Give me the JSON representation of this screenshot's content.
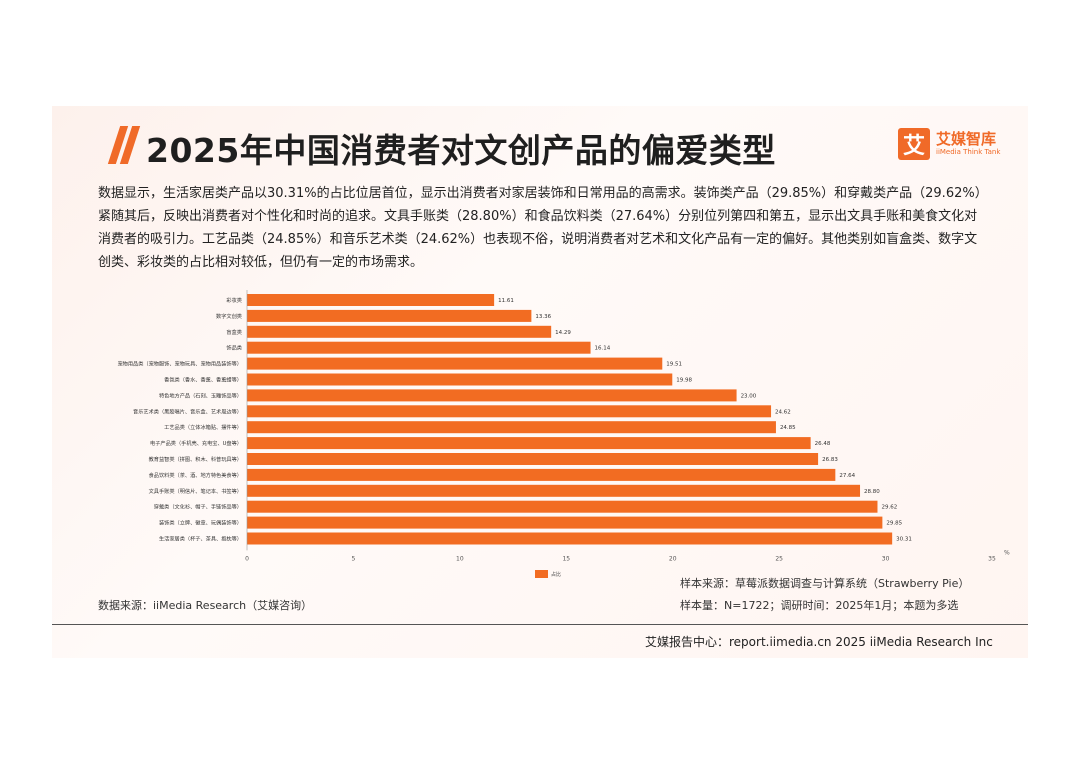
{
  "header": {
    "title": "2025年中国消费者对文创产品的偏爱类型",
    "logo_mark": "艾",
    "logo_cn": "艾媒智库",
    "logo_en": "iiMedia Think Tank"
  },
  "description": "数据显示，生活家居类产品以30.31%的占比位居首位，显示出消费者对家居装饰和日常用品的高需求。装饰类产品（29.85%）和穿戴类产品（29.62%）紧随其后，反映出消费者对个性化和时尚的追求。文具手账类（28.80%）和食品饮料类（27.64%）分别位列第四和第五，显示出文具手账和美食文化对消费者的吸引力。工艺品类（24.85%）和音乐艺术类（24.62%）也表现不俗，说明消费者对艺术和文化产品有一定的偏好。其他类别如盲盒类、数字文创类、彩妆类的占比相对较低，但仍有一定的市场需求。",
  "chart_data": {
    "type": "bar",
    "orientation": "horizontal",
    "categories": [
      "彩妆类",
      "数字文创类",
      "盲盒类",
      "饰品类",
      "宠物用品类（宠物服饰、宠物玩具、宠物用品装饰等）",
      "香氛类（香水、香薰、香薰蜡等）",
      "特色地方产品（石刻、玉雕饰品等）",
      "音乐艺术类（黑胶唱片、音乐盒、艺术周边等）",
      "工艺品类（立体冰箱贴、摆件等）",
      "电子产品类（手机壳、充电宝、U盘等）",
      "教育益智类（拼图、积木、科普玩具等）",
      "食品饮料类（茶、酒、地方特色美食等）",
      "文具手账类（明信片、笔记本、书签等）",
      "穿戴类（文化衫、帽子、手链饰品等）",
      "装饰类（立牌、徽章、玩偶装饰等）",
      "生活家居类（杯子、茶具、抱枕等）"
    ],
    "values": [
      11.61,
      13.36,
      14.29,
      16.14,
      19.51,
      19.98,
      23.0,
      24.62,
      24.85,
      26.48,
      26.83,
      27.64,
      28.8,
      29.62,
      29.85,
      30.31
    ],
    "value_labels": [
      "11.61",
      "13.36",
      "14.29",
      "16.14",
      "19.51",
      "19.98",
      "23.00",
      "24.62",
      "24.85",
      "26.48",
      "26.83",
      "27.64",
      "28.80",
      "29.62",
      "29.85",
      "30.31"
    ],
    "xlim": [
      0,
      35
    ],
    "x_ticks": [
      "0",
      "5",
      "10",
      "15",
      "20",
      "25",
      "30",
      "35"
    ],
    "x_unit": "%",
    "series_name": "占比",
    "bar_color": "#f26c22"
  },
  "notes": {
    "source_left": "数据来源：iiMedia Research（艾媒咨询）",
    "sample_source": "样本来源：草莓派数据调查与计算系统（Strawberry Pie）",
    "sample_size": "样本量：N=1722；调研时间：2025年1月；本题为多选"
  },
  "footer": {
    "text": "艾媒报告中心：report.iimedia.cn 2025 iiMedia Research Inc"
  }
}
